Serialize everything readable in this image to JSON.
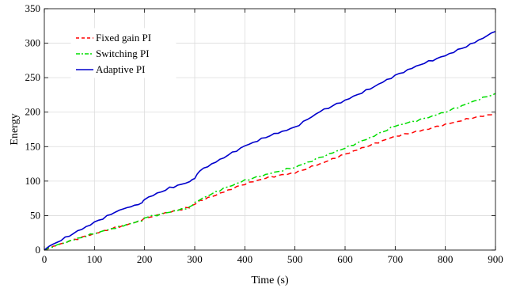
{
  "chart_data": {
    "type": "line",
    "title": "",
    "xlabel": "Time (s)",
    "ylabel": "Energy",
    "xlim": [
      0,
      900
    ],
    "ylim": [
      0,
      350
    ],
    "xticks": [
      0,
      100,
      200,
      300,
      400,
      500,
      600,
      700,
      800,
      900
    ],
    "yticks": [
      0,
      50,
      100,
      150,
      200,
      250,
      300,
      350
    ],
    "grid": true,
    "legend_position": "top-left",
    "x": [
      0,
      10,
      25,
      50,
      100,
      150,
      195,
      200,
      250,
      290,
      300,
      310,
      350,
      400,
      450,
      500,
      550,
      600,
      650,
      700,
      750,
      800,
      850,
      900
    ],
    "series": [
      {
        "name": "Fixed gain PI",
        "color": "#ff0000",
        "dash": "dashed",
        "values": [
          0,
          3,
          7,
          13,
          24,
          34,
          43,
          46,
          55,
          62,
          66,
          71,
          82,
          96,
          106,
          112,
          125,
          139,
          152,
          165,
          173,
          182,
          191,
          198
        ]
      },
      {
        "name": "Switching PI",
        "color": "#00dd00",
        "dash": "dashdot",
        "values": [
          0,
          3,
          7,
          13,
          24,
          34,
          43,
          47,
          55,
          62,
          68,
          73,
          87,
          101,
          111,
          120,
          134,
          148,
          163,
          180,
          189,
          200,
          214,
          227
        ]
      },
      {
        "name": "Adaptive PI",
        "color": "#0000cc",
        "dash": "solid",
        "values": [
          0,
          6,
          11,
          21,
          40,
          58,
          68,
          74,
          90,
          99,
          105,
          115,
          131,
          151,
          166,
          178,
          201,
          217,
          234,
          253,
          269,
          282,
          298,
          317
        ]
      }
    ]
  }
}
